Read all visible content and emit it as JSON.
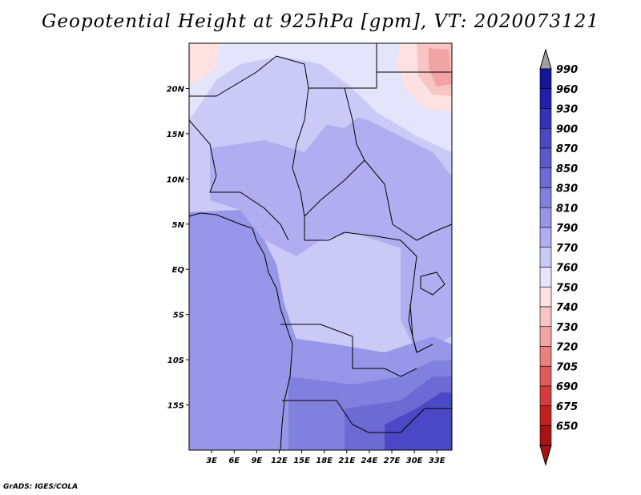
{
  "title": "Geopotential Height at 925hPa [gpm], VT: 2020073121",
  "credit": "GrADS: IGES/COLA",
  "map": {
    "lon_range": [
      0,
      35
    ],
    "lat_range": [
      -20,
      25
    ],
    "lat_ticks": [
      {
        "label": "20N",
        "value": 20
      },
      {
        "label": "15N",
        "value": 15
      },
      {
        "label": "10N",
        "value": 10
      },
      {
        "label": "5N",
        "value": 5
      },
      {
        "label": "EQ",
        "value": 0
      },
      {
        "label": "5S",
        "value": -5
      },
      {
        "label": "10S",
        "value": -10
      },
      {
        "label": "15S",
        "value": -15
      }
    ],
    "lon_ticks": [
      {
        "label": "3E",
        "value": 3
      },
      {
        "label": "6E",
        "value": 6
      },
      {
        "label": "9E",
        "value": 9
      },
      {
        "label": "12E",
        "value": 12
      },
      {
        "label": "15E",
        "value": 15
      },
      {
        "label": "18E",
        "value": 18
      },
      {
        "label": "21E",
        "value": 21
      },
      {
        "label": "24E",
        "value": 24
      },
      {
        "label": "27E",
        "value": 27
      },
      {
        "label": "30E",
        "value": 30
      },
      {
        "label": "33E",
        "value": 33
      }
    ]
  },
  "colorbar": {
    "levels": [
      "990",
      "960",
      "930",
      "900",
      "870",
      "850",
      "830",
      "810",
      "790",
      "770",
      "760",
      "750",
      "740",
      "730",
      "720",
      "705",
      "690",
      "675",
      "650"
    ],
    "colors": [
      "#15149a",
      "#2021aa",
      "#3333b6",
      "#4a48c4",
      "#5b59cc",
      "#6d6ad4",
      "#8280de",
      "#9896e8",
      "#b0aef0",
      "#cbcaf6",
      "#e4e4fb",
      "#fde2e1",
      "#f9c4c4",
      "#f2a3a3",
      "#ea8080",
      "#e05c5c",
      "#d43b3b",
      "#c21f1f",
      "#a81212"
    ]
  }
}
